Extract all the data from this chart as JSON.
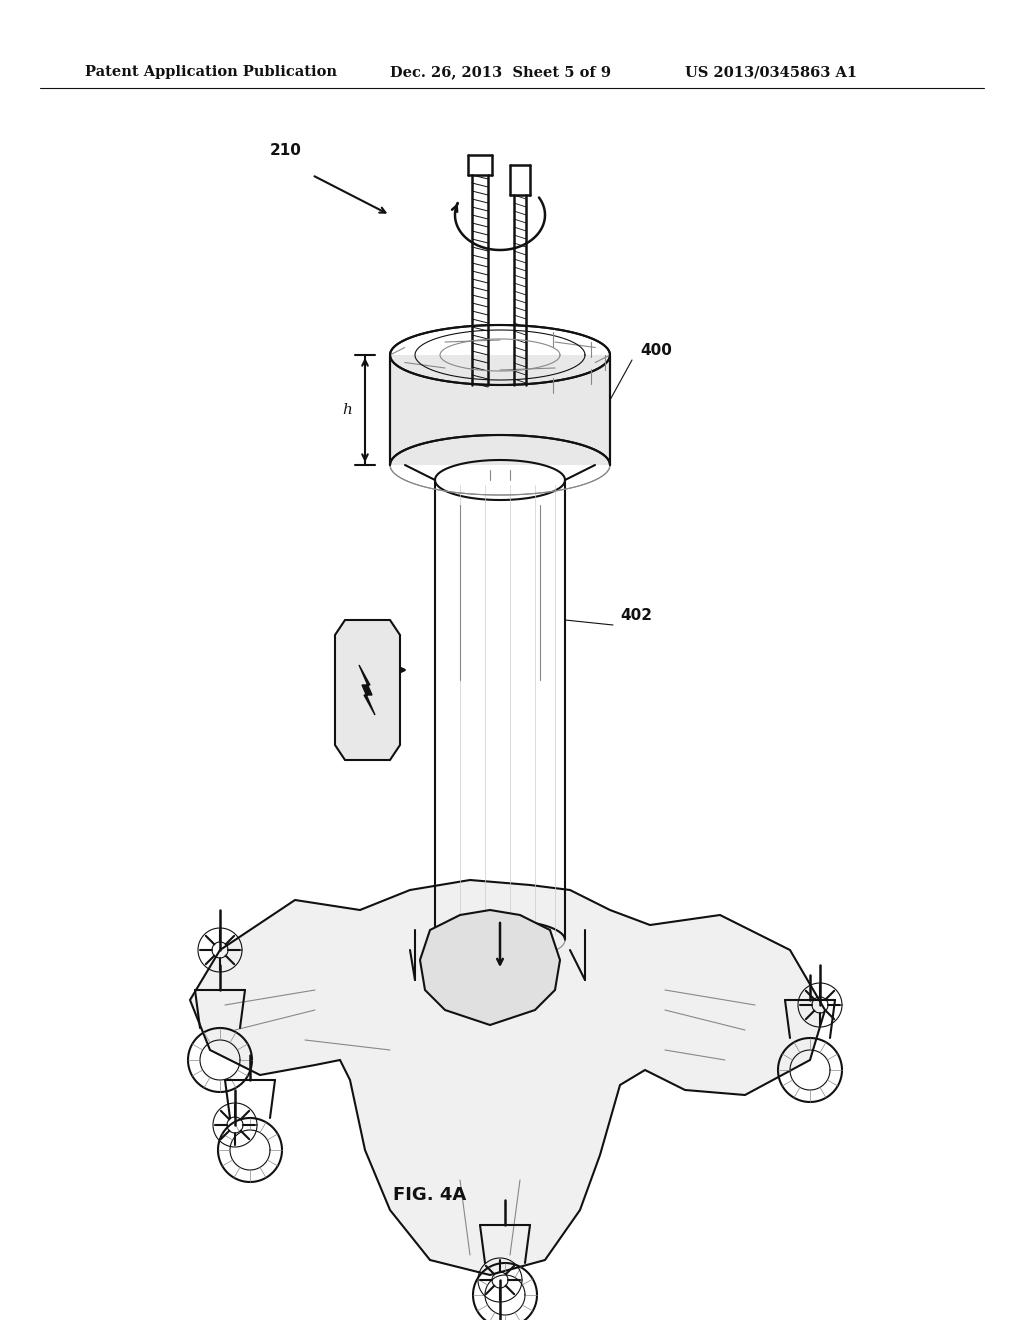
{
  "bg_color": "#ffffff",
  "header_left": "Patent Application Publication",
  "header_mid": "Dec. 26, 2013  Sheet 5 of 9",
  "header_right": "US 2013/0345863 A1",
  "fig_label": "FIG. 4A",
  "label_210": "210",
  "label_400": "400",
  "label_402": "402",
  "label_h": "h",
  "header_fontsize": 11,
  "fig_label_fontsize": 14
}
